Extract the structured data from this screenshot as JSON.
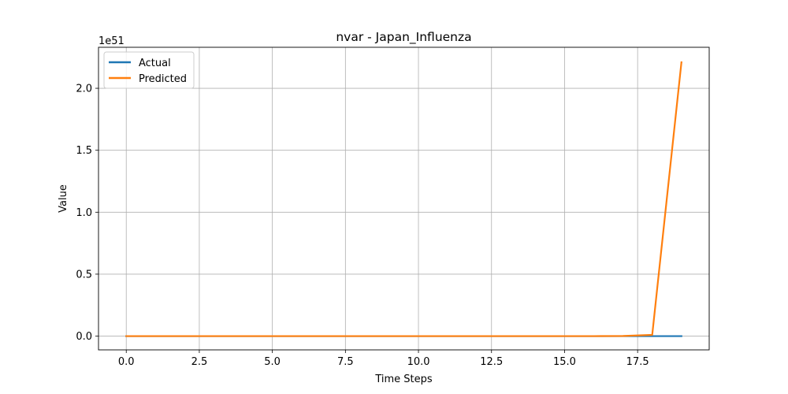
{
  "chart_data": {
    "type": "line",
    "title": "nvar - Japan_Influenza",
    "xlabel": "Time Steps",
    "ylabel": "Value",
    "y_offset_text": "1e51",
    "y_scale_exponent": 51,
    "xlim": [
      -0.95,
      19.95
    ],
    "ylim": [
      -0.111,
      2.331
    ],
    "xticks": [
      0.0,
      2.5,
      5.0,
      7.5,
      10.0,
      12.5,
      15.0,
      17.5
    ],
    "xtick_labels": [
      "0.0",
      "2.5",
      "5.0",
      "7.5",
      "10.0",
      "12.5",
      "15.0",
      "17.5"
    ],
    "yticks": [
      0.0,
      0.5,
      1.0,
      1.5,
      2.0
    ],
    "ytick_labels": [
      "0.0",
      "0.5",
      "1.0",
      "1.5",
      "2.0"
    ],
    "grid": true,
    "legend_position": "top-left",
    "x": [
      0,
      1,
      2,
      3,
      4,
      5,
      6,
      7,
      8,
      9,
      10,
      11,
      12,
      13,
      14,
      15,
      16,
      17,
      18,
      19
    ],
    "series": [
      {
        "name": "Actual",
        "color": "#1f77b4",
        "values": [
          0,
          0,
          0,
          0,
          0,
          0,
          0,
          0,
          0,
          0,
          0,
          0,
          0,
          0,
          0,
          0,
          0,
          0,
          0,
          0
        ]
      },
      {
        "name": "Predicted",
        "color": "#ff7f0e",
        "values": [
          0,
          0,
          0,
          0,
          0,
          0,
          0,
          0,
          0,
          0,
          0,
          0,
          0,
          0,
          0,
          0,
          0,
          0.001,
          0.01,
          2.21
        ]
      }
    ]
  }
}
